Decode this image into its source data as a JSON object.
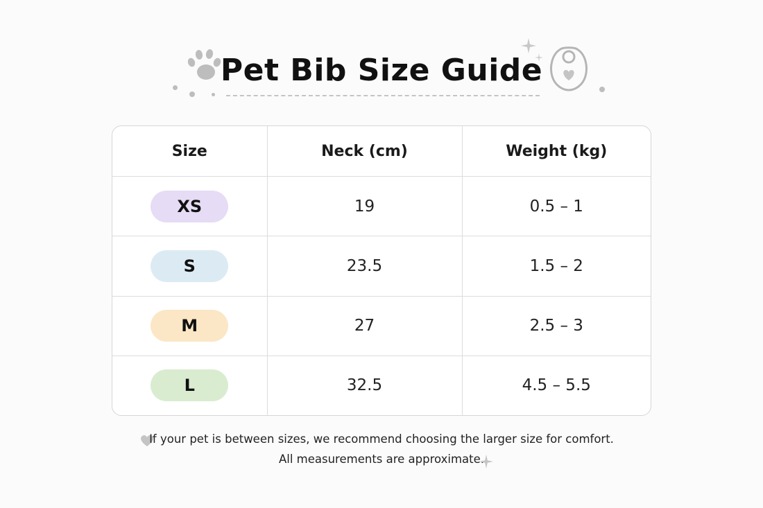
{
  "page": {
    "title": "Pet Bib Size Guide"
  },
  "table": {
    "headers": [
      "Size",
      "Neck (cm)",
      "Weight (kg)"
    ],
    "rows": [
      {
        "size": "XS",
        "neck": "19",
        "weight": "0.5 – 1",
        "pill_color": "#e6dcf5"
      },
      {
        "size": "S",
        "neck": "23.5",
        "weight": "1.5 – 2",
        "pill_color": "#dcebf3"
      },
      {
        "size": "M",
        "neck": "27",
        "weight": "2.5 – 3",
        "pill_color": "#fbe7c6"
      },
      {
        "size": "L",
        "neck": "32.5",
        "weight": "4.5 – 5.5",
        "pill_color": "#d9ecd0"
      }
    ]
  },
  "footer": {
    "note": "If your pet is between sizes, we recommend choosing the larger size for comfort.",
    "disclaimer": "All measurements are approximate."
  },
  "icons": {
    "paw": "paw-icon",
    "bib": "bib-icon",
    "heart": "heart-icon",
    "sparkle": "sparkle-icon"
  },
  "colors": {
    "icon_gray": "#bdbdbd",
    "border": "#d6d6d6"
  }
}
